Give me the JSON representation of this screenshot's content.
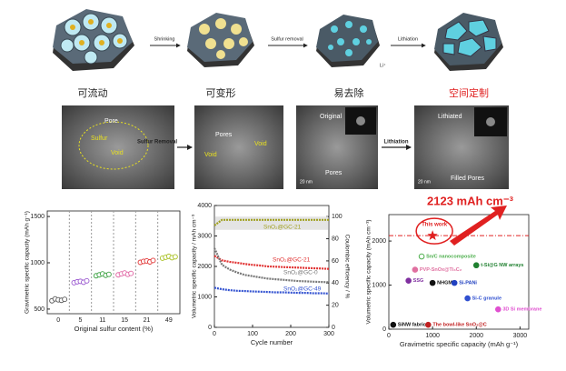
{
  "top_row": {
    "steps": [
      "Shrinking",
      "Sulfur removal",
      "Lithiation"
    ],
    "ion": "Li⁺",
    "stages": [
      "可流动",
      "可变形",
      "易去除",
      "空间定制"
    ]
  },
  "tem_row": {
    "arrows": [
      "Sulfur Removal",
      "Lithiation"
    ],
    "panel1": [
      "Pore",
      "Sulfur",
      "Void"
    ],
    "panel2": [
      "Pores",
      "Void",
      "Void"
    ],
    "panel3": [
      "Original",
      "Pores",
      "20 nm"
    ],
    "panel4": [
      "Lithiated",
      "Filled Pores",
      "20 nm"
    ]
  },
  "chart_data": [
    {
      "type": "strip",
      "x_label": "Original sulfur content (%)",
      "y_label": "Gravimetric specific capacity (mAh g⁻¹)",
      "categories": [
        "0",
        "5",
        "11",
        "15",
        "21",
        "49"
      ],
      "values": [
        [
          590,
          610,
          600,
          595,
          605
        ],
        [
          785,
          795,
          800,
          790,
          805
        ],
        [
          860,
          870,
          880,
          865,
          875
        ],
        [
          870,
          880,
          890,
          875,
          885
        ],
        [
          1005,
          1015,
          1020,
          1010,
          1025
        ],
        [
          1050,
          1060,
          1070,
          1055,
          1065
        ]
      ],
      "colors": [
        "#555555",
        "#9b59d0",
        "#3aa040",
        "#e060a0",
        "#e03030",
        "#a8c020"
      ],
      "ylim": [
        450,
        1560
      ],
      "yticks": [
        500,
        1000,
        1500
      ]
    },
    {
      "type": "line",
      "x_label": "Cycle number",
      "y_label": "Volumetric specific capacity / mAh cm⁻³",
      "y2_label": "Coulombic efficiency / %",
      "x": [
        0,
        20,
        40,
        60,
        80,
        100,
        120,
        140,
        160,
        180,
        200,
        220,
        240,
        260,
        280,
        300
      ],
      "xlim": [
        0,
        300
      ],
      "xticks": [
        0,
        100,
        200,
        300
      ],
      "ylim": [
        0,
        4000
      ],
      "yticks": [
        0,
        1000,
        2000,
        3000,
        4000
      ],
      "y2lim": [
        0,
        110
      ],
      "y2ticks": [
        0,
        20,
        40,
        60,
        80,
        100
      ],
      "series": [
        {
          "name": "SnO₂@GC-21",
          "color": "#a0a020",
          "axis": "y2",
          "values": [
            92,
            97,
            97,
            97,
            97,
            97,
            97,
            97,
            97,
            97,
            97,
            97,
            97,
            97,
            97,
            97
          ]
        },
        {
          "name": "SnO₂@GC-21",
          "color": "#e03030",
          "values": [
            2350,
            2200,
            2150,
            2120,
            2080,
            2050,
            2030,
            2000,
            1990,
            1980,
            1970,
            1960,
            1950,
            1940,
            1930,
            1920
          ]
        },
        {
          "name": "SnO₂@GC-0",
          "color": "#777777",
          "values": [
            2600,
            2050,
            1900,
            1800,
            1720,
            1680,
            1640,
            1600,
            1580,
            1560,
            1540,
            1520,
            1510,
            1500,
            1490,
            1480
          ]
        },
        {
          "name": "SnO₂@GC-49",
          "color": "#3050d0",
          "values": [
            1300,
            1250,
            1220,
            1200,
            1190,
            1180,
            1170,
            1160,
            1150,
            1150,
            1140,
            1130,
            1130,
            1120,
            1120,
            1110
          ]
        }
      ]
    },
    {
      "type": "scatter",
      "x_label": "Gravimetric specific capacity (mAh g⁻¹)",
      "y_label": "Volumetric specific capacity (mAh cm⁻³)",
      "annotation": "2123 mAh cm⁻³",
      "line_value": 2123,
      "xlim": [
        0,
        3200
      ],
      "xticks": [
        0,
        1000,
        2000,
        3000
      ],
      "ylim": [
        0,
        2600
      ],
      "yticks": [
        0,
        1000,
        2000
      ],
      "points": [
        {
          "name": "This work",
          "x": 1000,
          "y": 2123,
          "color": "#e02020"
        },
        {
          "name": "Sn/C nanocomposite",
          "x": 750,
          "y": 1650,
          "color": "#50b050"
        },
        {
          "name": "t-Si@G NW arrays",
          "x": 2000,
          "y": 1450,
          "color": "#208030"
        },
        {
          "name": "PVP-SnOx@Ti₃C₂",
          "x": 600,
          "y": 1350,
          "color": "#e070a0"
        },
        {
          "name": "SSG",
          "x": 450,
          "y": 1100,
          "color": "#8030a0"
        },
        {
          "name": "NHGM",
          "x": 1000,
          "y": 1050,
          "color": "#111111"
        },
        {
          "name": "Si-PANi",
          "x": 1500,
          "y": 1050,
          "color": "#2040c0"
        },
        {
          "name": "Si-C granule",
          "x": 1800,
          "y": 700,
          "color": "#3050d0"
        },
        {
          "name": "3D Si membrane",
          "x": 2500,
          "y": 450,
          "color": "#e050d0"
        },
        {
          "name": "SiNW fabric",
          "x": 100,
          "y": 100,
          "color": "#111111"
        },
        {
          "name": "The bowl-like SnO₂@C",
          "x": 900,
          "y": 100,
          "color": "#c02020"
        }
      ]
    }
  ]
}
